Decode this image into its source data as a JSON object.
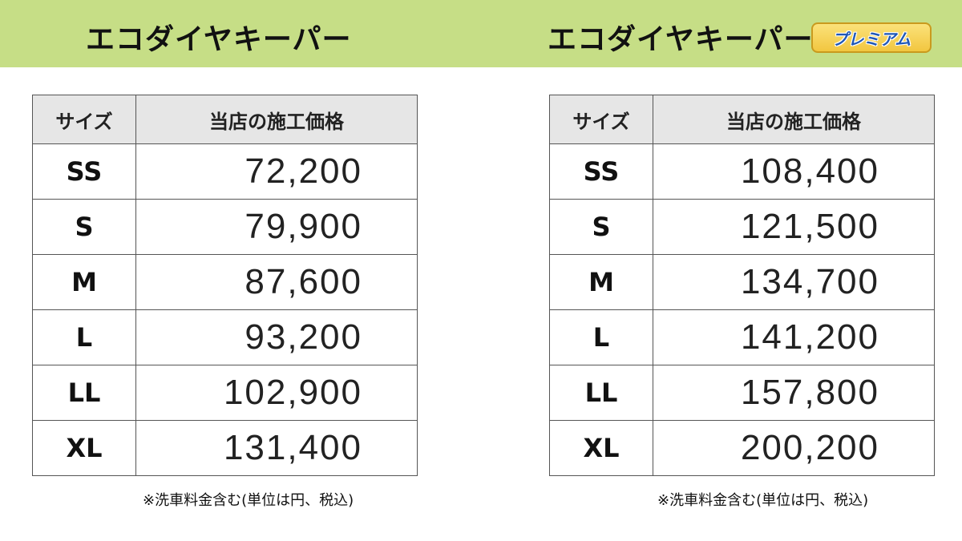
{
  "header": {
    "left_title": "エコダイヤキーパー",
    "right_title": "エコダイヤキーパー",
    "right_badge": "プレミアム",
    "background_color": "#c6de86"
  },
  "columns": {
    "size": "サイズ",
    "price": "当店の施工価格"
  },
  "left_table": {
    "rows": [
      {
        "size": "SS",
        "price": "72,200"
      },
      {
        "size": "S",
        "price": "79,900"
      },
      {
        "size": "M",
        "price": "87,600"
      },
      {
        "size": "L",
        "price": "93,200"
      },
      {
        "size": "LL",
        "price": "102,900"
      },
      {
        "size": "XL",
        "price": "131,400"
      }
    ]
  },
  "right_table": {
    "rows": [
      {
        "size": "SS",
        "price": "108,400"
      },
      {
        "size": "S",
        "price": "121,500"
      },
      {
        "size": "M",
        "price": "134,700"
      },
      {
        "size": "L",
        "price": "141,200"
      },
      {
        "size": "LL",
        "price": "157,800"
      },
      {
        "size": "XL",
        "price": "200,200"
      }
    ]
  },
  "footnote": "※洗車料金含む(単位は円、税込)"
}
